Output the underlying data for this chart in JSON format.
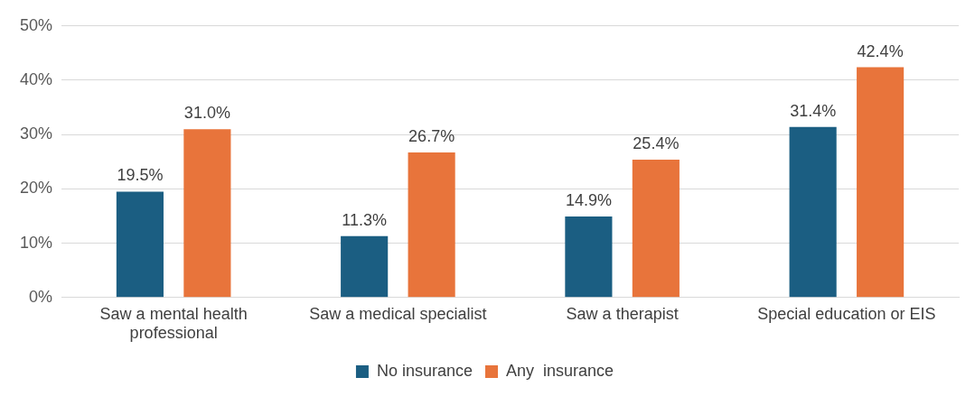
{
  "chart_data": {
    "type": "bar",
    "categories": [
      "Saw a mental health professional",
      "Saw a medical specialist",
      "Saw a therapist",
      "Special education or EIS"
    ],
    "series": [
      {
        "name": "No insurance",
        "color": "#1b5e82",
        "values": [
          19.5,
          11.3,
          14.9,
          31.4
        ],
        "value_labels": [
          "19.5%",
          "11.3%",
          "14.9%",
          "31.4%"
        ]
      },
      {
        "name": "Any  insurance",
        "color": "#e8743b",
        "values": [
          31.0,
          26.7,
          25.4,
          42.4
        ],
        "value_labels": [
          "31.0%",
          "26.7%",
          "25.4%",
          "42.4%"
        ]
      }
    ],
    "ylim": [
      0,
      50
    ],
    "yticks": [
      {
        "value": 0,
        "label": "0%"
      },
      {
        "value": 10,
        "label": "10%"
      },
      {
        "value": 20,
        "label": "20%"
      },
      {
        "value": 30,
        "label": "30%"
      },
      {
        "value": 40,
        "label": "40%"
      },
      {
        "value": 50,
        "label": "50%"
      }
    ],
    "grid": "y",
    "legend": "bottom"
  }
}
